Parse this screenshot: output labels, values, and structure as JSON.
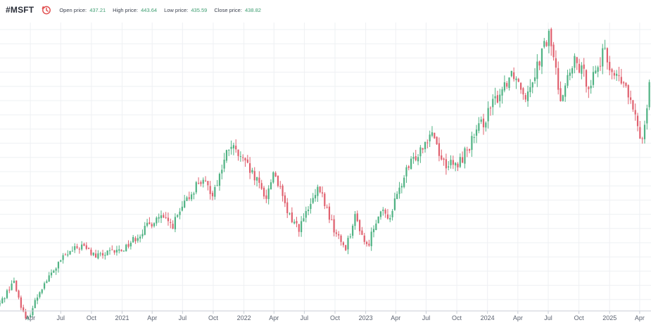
{
  "header": {
    "symbol": "#MSFT",
    "clock_icon": "clock-history-icon",
    "open_label": "Open price:",
    "open_value": "437.21",
    "high_label": "High price:",
    "high_value": "443.64",
    "low_label": "Low price:",
    "low_value": "435.59",
    "close_label": "Close price:",
    "close_value": "438.82"
  },
  "colors": {
    "up": "#4fb283",
    "down": "#e0606e",
    "grid": "#eef0f3",
    "axis": "#c9ced6",
    "accent_red": "#e04b4b",
    "price_green": "#3f9e72"
  },
  "chart_data": {
    "type": "candlestick",
    "title": "#MSFT",
    "x_range": [
      "2020-01-01",
      "2025-05-05"
    ],
    "ylim": [
      150,
      480
    ],
    "grid": true,
    "x_ticks": [
      {
        "date": "2020-04-01",
        "label": "Apr"
      },
      {
        "date": "2020-07-01",
        "label": "Jul"
      },
      {
        "date": "2020-10-01",
        "label": "Oct"
      },
      {
        "date": "2021-01-01",
        "label": "2021"
      },
      {
        "date": "2021-04-01",
        "label": "Apr"
      },
      {
        "date": "2021-07-01",
        "label": "Jul"
      },
      {
        "date": "2021-10-01",
        "label": "Oct"
      },
      {
        "date": "2022-01-01",
        "label": "2022"
      },
      {
        "date": "2022-04-01",
        "label": "Apr"
      },
      {
        "date": "2022-07-01",
        "label": "Jul"
      },
      {
        "date": "2022-10-01",
        "label": "Oct"
      },
      {
        "date": "2023-01-01",
        "label": "2023"
      },
      {
        "date": "2023-04-01",
        "label": "Apr"
      },
      {
        "date": "2023-07-01",
        "label": "Jul"
      },
      {
        "date": "2023-10-01",
        "label": "Oct"
      },
      {
        "date": "2024-01-01",
        "label": "2024"
      },
      {
        "date": "2024-04-01",
        "label": "Apr"
      },
      {
        "date": "2024-07-01",
        "label": "Jul"
      },
      {
        "date": "2024-10-01",
        "label": "Oct"
      },
      {
        "date": "2025-01-01",
        "label": "2025"
      },
      {
        "date": "2025-04-01",
        "label": "Apr"
      }
    ],
    "close_path": [
      [
        "2020-01-01",
        158
      ],
      [
        "2020-02-10",
        185
      ],
      [
        "2020-03-20",
        137
      ],
      [
        "2020-05-01",
        175
      ],
      [
        "2020-07-10",
        212
      ],
      [
        "2020-09-01",
        225
      ],
      [
        "2020-10-15",
        212
      ],
      [
        "2021-01-01",
        220
      ],
      [
        "2021-04-20",
        258
      ],
      [
        "2021-06-01",
        248
      ],
      [
        "2021-08-20",
        300
      ],
      [
        "2021-10-01",
        285
      ],
      [
        "2021-11-20",
        340
      ],
      [
        "2022-01-10",
        315
      ],
      [
        "2022-03-10",
        280
      ],
      [
        "2022-04-01",
        312
      ],
      [
        "2022-05-10",
        262
      ],
      [
        "2022-06-15",
        245
      ],
      [
        "2022-08-15",
        290
      ],
      [
        "2022-10-01",
        240
      ],
      [
        "2022-11-01",
        222
      ],
      [
        "2022-12-01",
        258
      ],
      [
        "2023-01-05",
        222
      ],
      [
        "2023-02-10",
        265
      ],
      [
        "2023-03-10",
        255
      ],
      [
        "2023-05-01",
        308
      ],
      [
        "2023-07-18",
        358
      ],
      [
        "2023-08-20",
        320
      ],
      [
        "2023-10-01",
        315
      ],
      [
        "2024-01-01",
        375
      ],
      [
        "2024-03-15",
        425
      ],
      [
        "2024-04-25",
        398
      ],
      [
        "2024-07-05",
        467
      ],
      [
        "2024-08-05",
        395
      ],
      [
        "2024-09-20",
        435
      ],
      [
        "2024-10-31",
        410
      ],
      [
        "2024-12-15",
        445
      ],
      [
        "2025-01-15",
        420
      ],
      [
        "2025-02-20",
        405
      ],
      [
        "2025-03-10",
        380
      ],
      [
        "2025-04-08",
        345
      ],
      [
        "2025-04-25",
        395
      ],
      [
        "2025-05-05",
        436
      ]
    ]
  }
}
